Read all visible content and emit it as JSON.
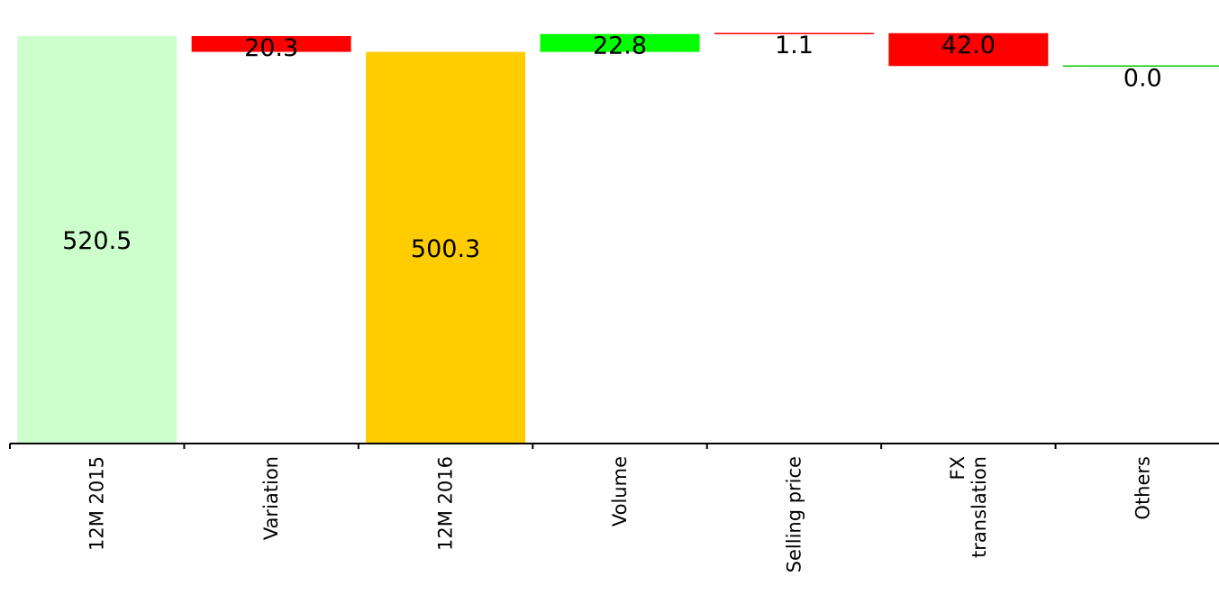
{
  "chart_data": {
    "type": "bar",
    "subtype": "waterfall",
    "title": "",
    "xlabel": "",
    "ylabel": "",
    "ylim": [
      0,
      550
    ],
    "grid": false,
    "legend": "none",
    "categories": [
      "12M 2015",
      "Variation",
      "12M 2016",
      "Volume",
      "Selling price",
      "FX translation",
      "Others"
    ],
    "category_label_lines": [
      [
        "12M 2015"
      ],
      [
        "Variation"
      ],
      [
        "12M 2016"
      ],
      [
        "Volume"
      ],
      [
        "Selling price"
      ],
      [
        "FX",
        "translation"
      ],
      [
        "Others"
      ]
    ],
    "bars": [
      {
        "category": "12M 2015",
        "base": 0,
        "top": 520.5,
        "label": "520.5",
        "kind": "total",
        "color": "#ccffcc"
      },
      {
        "category": "Variation",
        "base": 500.3,
        "top": 520.5,
        "label": "20.3",
        "kind": "decrease",
        "color": "#ff0000"
      },
      {
        "category": "12M 2016",
        "base": 0,
        "top": 500.3,
        "label": "500.3",
        "kind": "total",
        "color": "#ffcc00"
      },
      {
        "category": "Volume",
        "base": 500.3,
        "top": 523.1,
        "label": "22.8",
        "kind": "increase",
        "color": "#00ff00"
      },
      {
        "category": "Selling price",
        "base": 523.1,
        "top": 524.2,
        "label": "1.1",
        "kind": "increase",
        "color": "#ff0000"
      },
      {
        "category": "FX translation",
        "base": 482.2,
        "top": 524.2,
        "label": "42.0",
        "kind": "decrease",
        "color": "#ff0000"
      },
      {
        "category": "Others",
        "base": 482.2,
        "top": 482.2,
        "label": "0.0",
        "kind": "zero",
        "color": "#00cc00"
      }
    ],
    "colors": {
      "axis": "#000000",
      "total_2015": "#ccffcc",
      "total_2016": "#ffcc00",
      "increase": "#00ff00",
      "decrease": "#ff0000"
    }
  }
}
